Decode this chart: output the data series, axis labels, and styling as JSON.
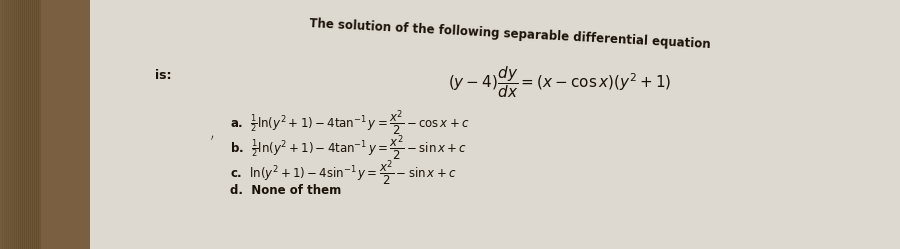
{
  "bg_color_left": "#8b7355",
  "bg_color_paper": "#ddd8d0",
  "text_color": "#1a1208",
  "title": "The solution of the following separable differential equation",
  "equation": "(y-4)\\dfrac{dy}{dx}=(x-\\cos x)(y^2+1)",
  "is_label": "is:",
  "opt_a": "a. $\\frac{1}{2}\\ln(y^2+1)-4\\tan^{-1}y=\\dfrac{x^2}{2}-\\cos x+c$",
  "opt_b": "b. $\\frac{1}{2}\\ln(y^2+1)-4\\tan^{-1}y=\\dfrac{x^2}{2}-\\sin x+c$",
  "opt_c": "c. $\\ln(y^2+1)-4\\sin^{-1}y=\\dfrac{x^2}{2}-\\sin x+c$",
  "opt_d": "d. None of them",
  "figsize": [
    9.0,
    2.49
  ],
  "dpi": 100
}
